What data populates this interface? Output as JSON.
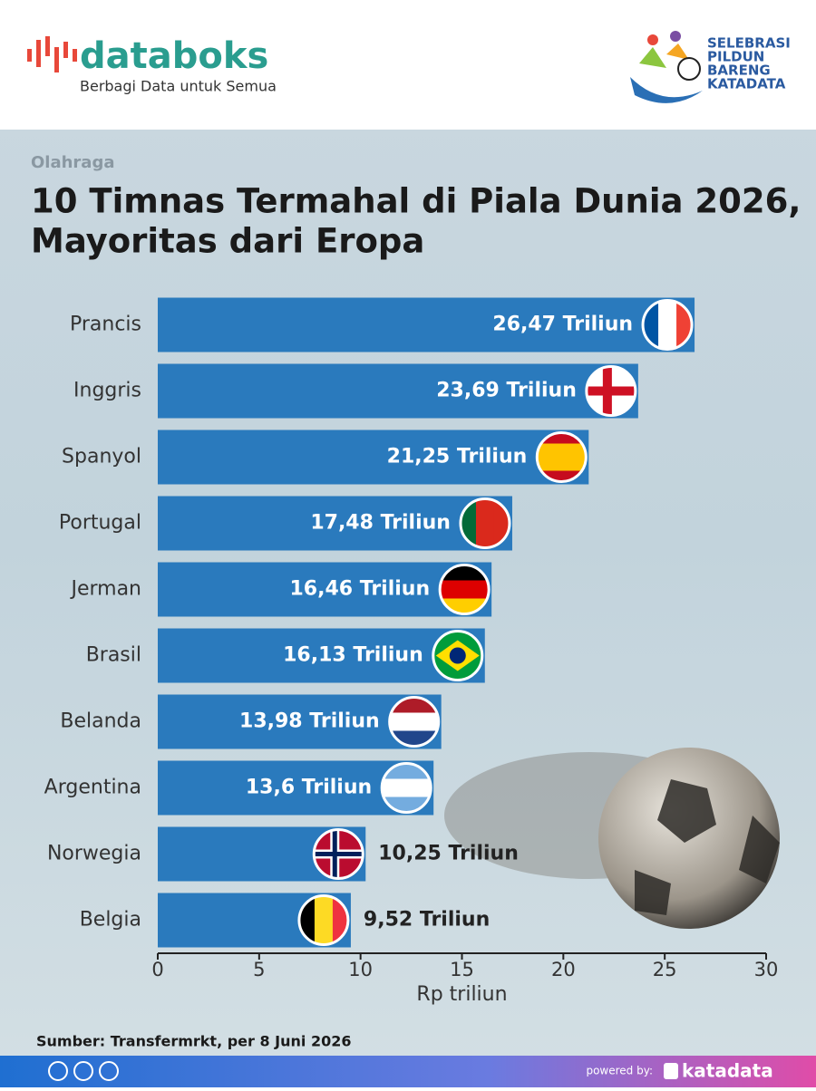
{
  "header": {
    "brand": "databoks",
    "tagline": "Berbagi Data untuk Semua",
    "event_logo": [
      "SELEBRASI",
      "PILDUN",
      "BARENG",
      "KATADATA"
    ]
  },
  "chart_data": {
    "type": "bar",
    "orientation": "horizontal",
    "kicker": "Olahraga",
    "title": "10 Timnas Termahal di Piala Dunia 2026,",
    "subtitle": "Mayoritas dari Eropa",
    "categories": [
      "Prancis",
      "Inggris",
      "Spanyol",
      "Portugal",
      "Jerman",
      "Brasil",
      "Belanda",
      "Argentina",
      "Norwegia",
      "Belgia"
    ],
    "values": [
      26.47,
      23.69,
      21.25,
      17.48,
      16.46,
      16.13,
      13.98,
      13.6,
      10.25,
      9.52
    ],
    "value_labels": [
      "26,47 Triliun",
      "23,69 Triliun",
      "21,25 Triliun",
      "17,48 Triliun",
      "16,46 Triliun",
      "16,13 Triliun",
      "13,98 Triliun",
      "13,6 Triliun",
      "10,25 Triliun",
      "9,52 Triliun"
    ],
    "color": "#2a7abd",
    "xlim": [
      0,
      30
    ],
    "xticks": [
      0,
      5,
      10,
      15,
      20,
      25,
      30
    ],
    "xlabel": "Rp triliun",
    "source": "Sumber: Transfermrkt, per 8 Juni 2026"
  },
  "footer": {
    "powered": "powered by:",
    "brand": "katadata"
  }
}
